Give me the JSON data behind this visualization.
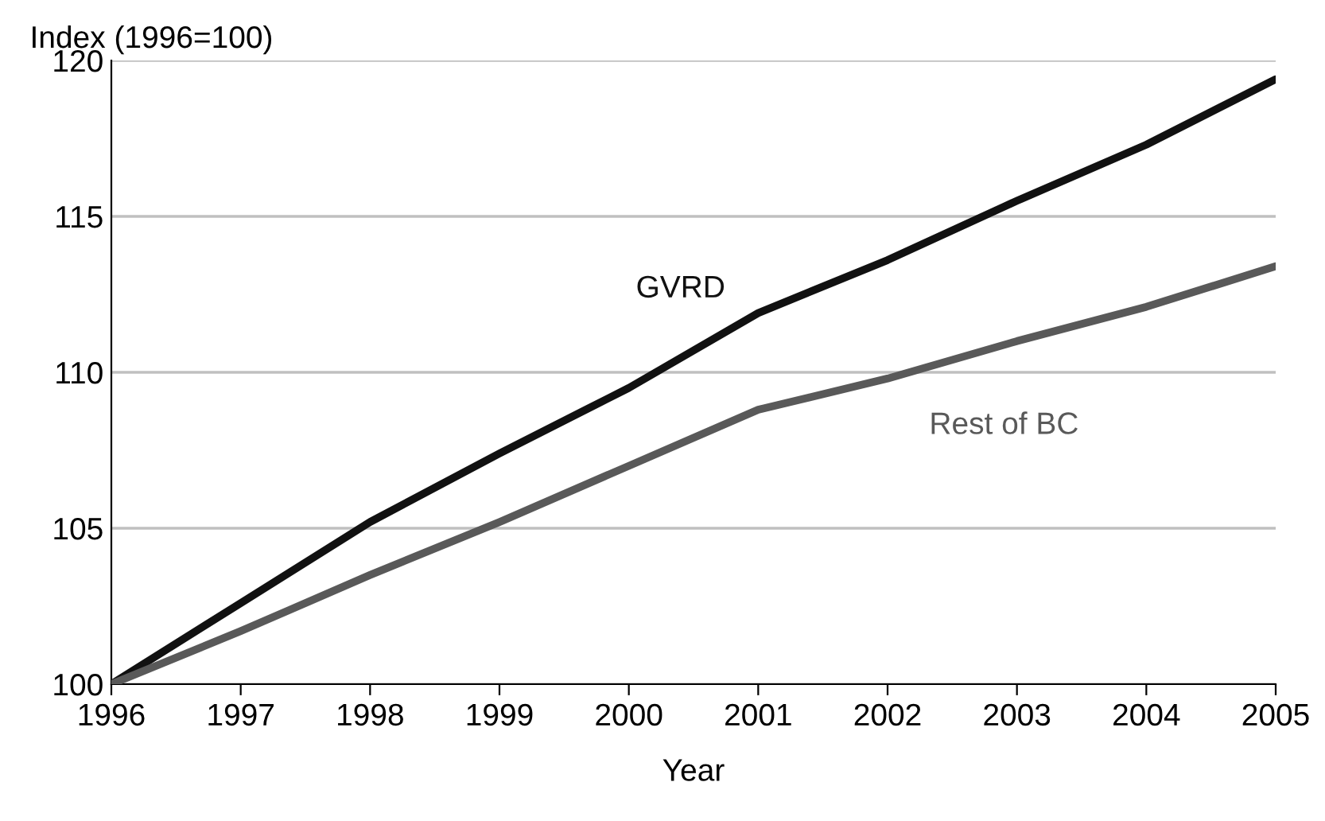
{
  "chart_data": {
    "type": "line",
    "xlabel": "Year",
    "ylabel": "Index (1996=100)",
    "x": [
      1996,
      1997,
      1998,
      1999,
      2000,
      2001,
      2002,
      2003,
      2004,
      2005
    ],
    "series": [
      {
        "name": "GVRD",
        "color": "#111111",
        "values": [
          100,
          102.6,
          105.2,
          107.4,
          109.5,
          111.9,
          113.6,
          115.5,
          117.3,
          119.4
        ]
      },
      {
        "name": "Rest of BC",
        "color": "#595959",
        "values": [
          100,
          101.7,
          103.5,
          105.2,
          107.0,
          108.8,
          109.8,
          111.0,
          112.1,
          113.4
        ]
      }
    ],
    "xlim": [
      1996,
      2005
    ],
    "xticks": [
      1996,
      1997,
      1998,
      1999,
      2000,
      2001,
      2002,
      2003,
      2004,
      2005
    ],
    "ylim": [
      100,
      120
    ],
    "yticks": [
      100,
      105,
      110,
      115,
      120
    ],
    "grid": "y",
    "legend": false,
    "marker": "none",
    "line_style": "solid"
  }
}
